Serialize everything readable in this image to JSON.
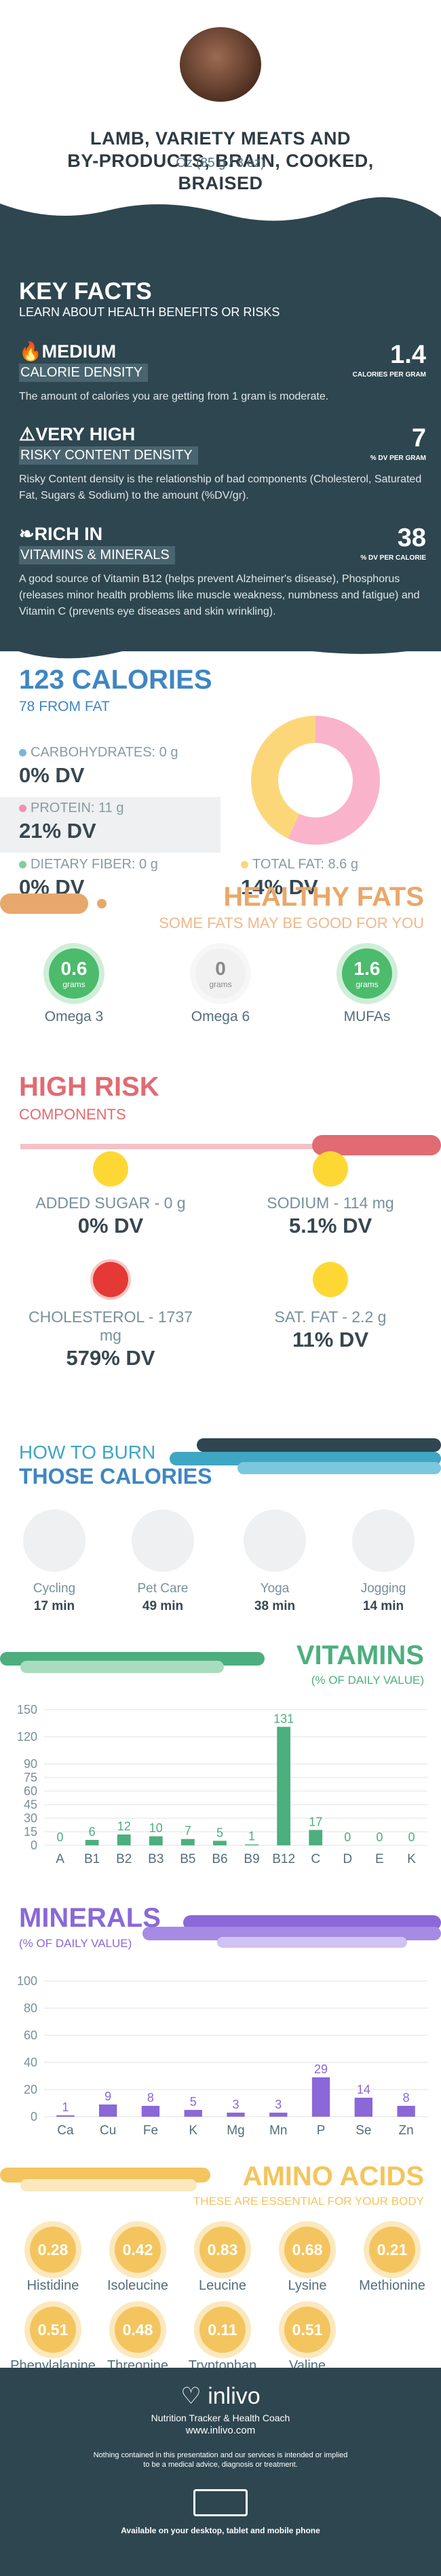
{
  "header": {
    "title_lines": [
      "LAMB, VARIETY MEATS AND",
      "BY-PRODUCTS, BRAIN, COOKED,",
      "BRAISED"
    ],
    "serving": "Oz (85 g / 3 oz)"
  },
  "key_facts": {
    "title": "KEY FACTS",
    "subtitle": "LEARN ABOUT HEALTH BENEFITS OR RISKS",
    "items": [
      {
        "level": "MEDIUM",
        "label": "CALORIE DENSITY",
        "value": "1.4",
        "unit": "CALORIES PER GRAM",
        "desc": "The amount of calories you are getting from 1 gram is moderate."
      },
      {
        "level": "VERY HIGH",
        "label": "RISKY CONTENT DENSITY",
        "value": "7",
        "unit": "% DV PER GRAM",
        "desc": "Risky Content density is the relationship of bad components (Cholesterol, Saturated Fat, Sugars & Sodium) to the amount (%DV/gr)."
      },
      {
        "level": "RICH  IN",
        "label": "VITAMINS & MINERALS",
        "value": "38",
        "unit": "% DV PER CALORIE",
        "desc": "A good source of Vitamin B12 (helps prevent Alzheimer's disease), Phosphorus (releases minor health problems like muscle weakness, numbness and fatigue) and Vitamin C (prevents eye diseases and skin wrinkling)."
      }
    ]
  },
  "calories": {
    "total": "123 CALORIES",
    "from_fat": "78 FROM FAT",
    "carbs": {
      "label": "CARBOHYDRATES: 0 g",
      "dv": "0% DV",
      "color": "#7ab6d9"
    },
    "protein": {
      "label": "PROTEIN: 11 g",
      "dv": "21% DV",
      "color": "#f58fb1"
    },
    "fiber": {
      "label": "DIETARY FIBER: 0 g",
      "dv": "0% DV",
      "color": "#7fcf9b"
    },
    "fat": {
      "label": "TOTAL FAT: 8.6 g",
      "dv": "14% DV",
      "color": "#fcd77a"
    },
    "donut": {
      "protein_pct": 0.57,
      "fat_pct": 0.43
    }
  },
  "healthy_fats": {
    "title": "HEALTHY FATS",
    "subtitle": "SOME FATS MAY BE GOOD FOR YOU",
    "unit": "grams",
    "items": [
      {
        "value": "0.6",
        "label": "Omega 3",
        "color": "#4cbb6c"
      },
      {
        "value": "0",
        "label": "Omega 6",
        "color": "#f1f1f1"
      },
      {
        "value": "1.6",
        "label": "MUFAs",
        "color": "#4cbb6c"
      }
    ]
  },
  "high_risk": {
    "title": "HIGH RISK",
    "subtitle": "COMPONENTS",
    "items": [
      {
        "label": "ADDED SUGAR - 0 g",
        "dv": "0% DV",
        "face": "#fdd835"
      },
      {
        "label": "SODIUM - 114 mg",
        "dv": "5.1% DV",
        "face": "#fdd835"
      },
      {
        "label": "CHOLESTEROL - 1737 mg",
        "dv": "579% DV",
        "face": "#e53935"
      },
      {
        "label": "SAT. FAT - 2.2 g",
        "dv": "11% DV",
        "face": "#fdd835"
      }
    ]
  },
  "burn": {
    "title1": "HOW TO BURN",
    "title2": "THOSE CALORIES",
    "items": [
      {
        "label": "Cycling",
        "min": "17 min"
      },
      {
        "label": "Pet Care",
        "min": "49 min"
      },
      {
        "label": "Yoga",
        "min": "38 min"
      },
      {
        "label": "Jogging",
        "min": "14 min"
      }
    ]
  },
  "vitamins": {
    "title": "VITAMINS",
    "subtitle": "(% OF DAILY VALUE)",
    "color": "#4caf7d",
    "chart_data": {
      "type": "bar",
      "categories": [
        "A",
        "B1",
        "B2",
        "B3",
        "B5",
        "B6",
        "B9",
        "B12",
        "C",
        "D",
        "E",
        "K"
      ],
      "values": [
        0,
        6,
        12,
        10,
        7,
        5,
        1,
        131,
        17,
        0,
        0,
        0
      ],
      "ylim": [
        0,
        150
      ],
      "yticks": [
        0,
        15,
        30,
        45,
        60,
        75,
        90,
        120,
        150
      ]
    }
  },
  "minerals": {
    "title": "MINERALS",
    "subtitle": "(% OF DAILY VALUE)",
    "color": "#8a68d8",
    "chart_data": {
      "type": "bar",
      "categories": [
        "Ca",
        "Cu",
        "Fe",
        "K",
        "Mg",
        "Mn",
        "P",
        "Se",
        "Zn"
      ],
      "values": [
        1,
        9,
        8,
        5,
        3,
        3,
        29,
        14,
        8
      ],
      "ylim": [
        0,
        100
      ],
      "yticks": [
        0,
        20,
        40,
        60,
        80,
        100
      ]
    }
  },
  "amino": {
    "title": "AMINO ACIDS",
    "subtitle": "THESE ARE ESSENTIAL FOR YOUR BODY",
    "items": [
      {
        "v": "0.28",
        "l": "Histidine"
      },
      {
        "v": "0.42",
        "l": "Isoleucine"
      },
      {
        "v": "0.83",
        "l": "Leucine"
      },
      {
        "v": "0.68",
        "l": "Lysine"
      },
      {
        "v": "0.21",
        "l": "Methionine"
      },
      {
        "v": "0.51",
        "l": "Phenylalanine"
      },
      {
        "v": "0.48",
        "l": "Threonine"
      },
      {
        "v": "0.11",
        "l": "Tryptophan"
      },
      {
        "v": "0.51",
        "l": "Valine"
      }
    ]
  },
  "footer": {
    "brand": "inlivo",
    "tagline": "Nutrition Tracker & Health Coach",
    "url": "www.inlivo.com",
    "disclaimer1": "Nothing contained in this presentation and our services is intended or implied",
    "disclaimer2": "to be a medical advice, diagnosis or treatment.",
    "available": "Available on your desktop, tablet and mobile phone"
  }
}
